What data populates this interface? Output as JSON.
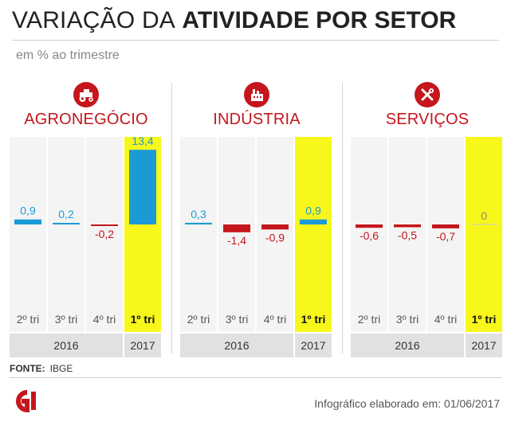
{
  "title": {
    "light": "VARIAÇÃO DA",
    "bold": "ATIVIDADE POR SETOR"
  },
  "subtitle": "em % ao trimestre",
  "footer": {
    "source_label": "FONTE:",
    "source_value": "IBGE",
    "credit": "Infográfico elaborado em: 01/06/2017"
  },
  "colors": {
    "positive": "#1b9ad6",
    "negative": "#c4161c",
    "highlight": "#f7f71c",
    "panel_bg": "#f4f4f4",
    "year_bg": "#e1e1e1"
  },
  "chart_data": [
    {
      "type": "bar",
      "title": "AGRONEGÓCIO",
      "icon": "tractor-icon",
      "categories": [
        "2º tri",
        "3º tri",
        "4º tri",
        "1º tri"
      ],
      "years": [
        {
          "label": "2016",
          "span": 3
        },
        {
          "label": "2017",
          "span": 1
        }
      ],
      "values": [
        0.9,
        0.2,
        -0.2,
        13.4
      ],
      "value_labels": [
        "0,9",
        "0,2",
        "-0,2",
        "13,4"
      ],
      "highlight_index": 3
    },
    {
      "type": "bar",
      "title": "INDÚSTRIA",
      "icon": "factory-icon",
      "categories": [
        "2º tri",
        "3º tri",
        "4º tri",
        "1º tri"
      ],
      "years": [
        {
          "label": "2016",
          "span": 3
        },
        {
          "label": "2017",
          "span": 1
        }
      ],
      "values": [
        0.3,
        -1.4,
        -0.9,
        0.9
      ],
      "value_labels": [
        "0,3",
        "-1,4",
        "-0,9",
        "0,9"
      ],
      "highlight_index": 3
    },
    {
      "type": "bar",
      "title": "SERVIÇOS",
      "icon": "tools-icon",
      "categories": [
        "2º tri",
        "3º tri",
        "4º tri",
        "1º tri"
      ],
      "years": [
        {
          "label": "2016",
          "span": 3
        },
        {
          "label": "2017",
          "span": 1
        }
      ],
      "values": [
        -0.6,
        -0.5,
        -0.7,
        0
      ],
      "value_labels": [
        "-0,6",
        "-0,5",
        "-0,7",
        "0"
      ],
      "highlight_index": 3
    }
  ]
}
